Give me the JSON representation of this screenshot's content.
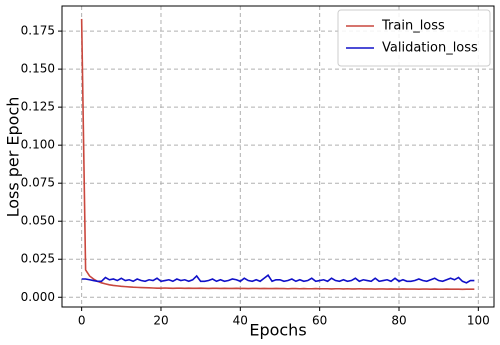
{
  "chart_data": {
    "type": "line",
    "xlabel": "Epochs",
    "ylabel": "Loss per Epoch",
    "x": [
      0,
      1,
      2,
      3,
      4,
      5,
      6,
      7,
      8,
      9,
      10,
      11,
      12,
      13,
      14,
      15,
      16,
      17,
      18,
      19,
      20,
      21,
      22,
      23,
      24,
      25,
      26,
      27,
      28,
      29,
      30,
      31,
      32,
      33,
      34,
      35,
      36,
      37,
      38,
      39,
      40,
      41,
      42,
      43,
      44,
      45,
      46,
      47,
      48,
      49,
      50,
      51,
      52,
      53,
      54,
      55,
      56,
      57,
      58,
      59,
      60,
      61,
      62,
      63,
      64,
      65,
      66,
      67,
      68,
      69,
      70,
      71,
      72,
      73,
      74,
      75,
      76,
      77,
      78,
      79,
      80,
      81,
      82,
      83,
      84,
      85,
      86,
      87,
      88,
      89,
      90,
      91,
      92,
      93,
      94,
      95,
      96,
      97,
      98,
      99
    ],
    "series": [
      {
        "name": "Train_loss",
        "color": "#c9473d",
        "values": [
          0.183,
          0.018,
          0.014,
          0.012,
          0.0105,
          0.0095,
          0.0088,
          0.0082,
          0.0078,
          0.0075,
          0.0072,
          0.007,
          0.0068,
          0.0066,
          0.0065,
          0.0064,
          0.0063,
          0.0062,
          0.0061,
          0.006,
          0.006,
          0.0061,
          0.006,
          0.0059,
          0.006,
          0.006,
          0.0059,
          0.006,
          0.0059,
          0.0059,
          0.006,
          0.0059,
          0.0058,
          0.0059,
          0.0059,
          0.0058,
          0.0059,
          0.0058,
          0.0058,
          0.0059,
          0.0058,
          0.0058,
          0.0057,
          0.0058,
          0.0058,
          0.0057,
          0.0058,
          0.0057,
          0.0057,
          0.0058,
          0.0057,
          0.0057,
          0.0056,
          0.0057,
          0.0057,
          0.0056,
          0.0057,
          0.0056,
          0.0056,
          0.0057,
          0.0056,
          0.0056,
          0.0056,
          0.0055,
          0.0056,
          0.0056,
          0.0055,
          0.0056,
          0.0055,
          0.0055,
          0.0056,
          0.0055,
          0.0055,
          0.0055,
          0.0054,
          0.0055,
          0.0055,
          0.0054,
          0.0055,
          0.0054,
          0.0054,
          0.0055,
          0.0054,
          0.0054,
          0.0054,
          0.0053,
          0.0054,
          0.0054,
          0.0053,
          0.0054,
          0.0053,
          0.0053,
          0.0054,
          0.0053,
          0.0053,
          0.0053,
          0.0052,
          0.0053,
          0.0053,
          0.0053
        ]
      },
      {
        "name": "Validation_loss",
        "color": "#1010c8",
        "values": [
          0.012,
          0.012,
          0.0115,
          0.011,
          0.0105,
          0.0105,
          0.013,
          0.0115,
          0.012,
          0.011,
          0.0125,
          0.011,
          0.0115,
          0.0105,
          0.012,
          0.011,
          0.0105,
          0.0115,
          0.011,
          0.0125,
          0.0105,
          0.011,
          0.0115,
          0.0105,
          0.012,
          0.011,
          0.0115,
          0.0105,
          0.0115,
          0.014,
          0.0105,
          0.0105,
          0.011,
          0.012,
          0.0105,
          0.0115,
          0.0105,
          0.011,
          0.012,
          0.0115,
          0.0105,
          0.0125,
          0.011,
          0.0105,
          0.0115,
          0.0105,
          0.0125,
          0.0145,
          0.0105,
          0.0115,
          0.0115,
          0.0105,
          0.011,
          0.012,
          0.0105,
          0.0115,
          0.0105,
          0.011,
          0.0125,
          0.0105,
          0.011,
          0.0115,
          0.0105,
          0.0125,
          0.011,
          0.0105,
          0.0115,
          0.0105,
          0.011,
          0.0125,
          0.0105,
          0.0115,
          0.011,
          0.0105,
          0.0125,
          0.0105,
          0.011,
          0.0115,
          0.0105,
          0.0125,
          0.0105,
          0.0115,
          0.0105,
          0.0105,
          0.011,
          0.012,
          0.011,
          0.0105,
          0.0115,
          0.0125,
          0.011,
          0.0105,
          0.0115,
          0.0125,
          0.0115,
          0.013,
          0.0105,
          0.0095,
          0.011,
          0.011
        ]
      }
    ],
    "xlim": [
      -4.95,
      103.95
    ],
    "xticks": [
      0,
      20,
      40,
      60,
      80,
      100
    ],
    "ylim": [
      -0.0064,
      0.1915
    ],
    "yticks": [
      {
        "value": 0,
        "label": "0.000"
      },
      0.025,
      {
        "value": 0.05,
        "label": "0.050"
      },
      0.075,
      {
        "value": 0.1,
        "label": "0.100"
      },
      0.125,
      {
        "value": 0.15,
        "label": "0.150"
      },
      0.175
    ],
    "grid": true,
    "legend": "upper right"
  }
}
